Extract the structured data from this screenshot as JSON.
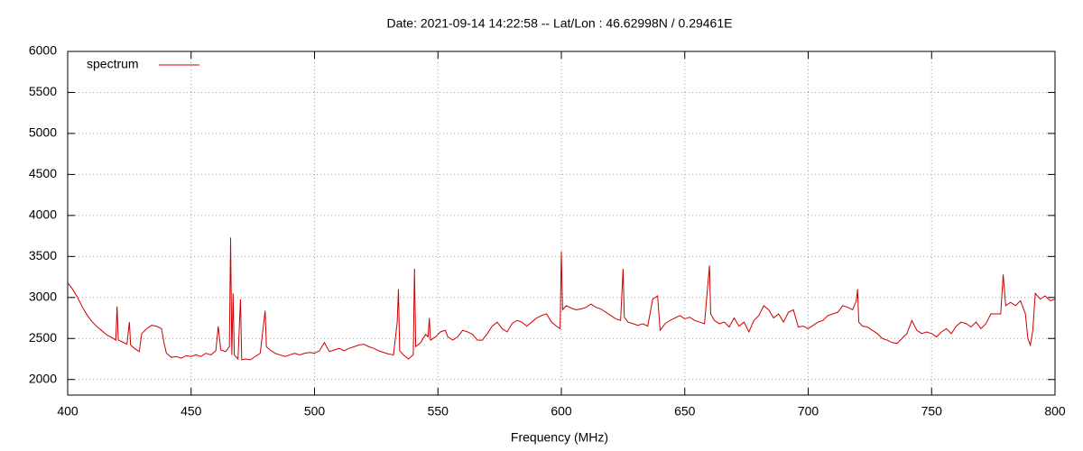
{
  "chart_data": {
    "type": "line",
    "title": "Date: 2021-09-14 14:22:58  --  Lat/Lon : 46.62998N / 0.29461E",
    "x_label": "Frequency (MHz)",
    "x": [
      400,
      402,
      404,
      406,
      408,
      410,
      412,
      414,
      416,
      418,
      419.5,
      420,
      420.5,
      422,
      424,
      425,
      425.5,
      427,
      429,
      430,
      432,
      434,
      436,
      438,
      439,
      440,
      442,
      444,
      446,
      448,
      450,
      452,
      454,
      456,
      458,
      460,
      461,
      462,
      464,
      465.5,
      466,
      466.5,
      467,
      467.5,
      469,
      470,
      470.5,
      472,
      474,
      476,
      478,
      480,
      480.5,
      482,
      484,
      486,
      488,
      490,
      492,
      494,
      496,
      498,
      500,
      502,
      504,
      506,
      508,
      510,
      512,
      514,
      516,
      518,
      520,
      522,
      524,
      526,
      528,
      530,
      532,
      533.5,
      534,
      534.5,
      536,
      538,
      540,
      540.5,
      541,
      543,
      545,
      546,
      546.5,
      547,
      549,
      551,
      553,
      554,
      556,
      558,
      560,
      562,
      564,
      566,
      568,
      570,
      572,
      574,
      576,
      578,
      580,
      582,
      584,
      586,
      588,
      590,
      592,
      594,
      596,
      598,
      599.5,
      600,
      600.5,
      602,
      604,
      606,
      608,
      610,
      612,
      614,
      616,
      618,
      620,
      622,
      624,
      625,
      625.5,
      627,
      629,
      631,
      633,
      635,
      637,
      639,
      640,
      642,
      644,
      646,
      648,
      650,
      652,
      654,
      656,
      658,
      660,
      660.5,
      662,
      664,
      666,
      668,
      670,
      672,
      674,
      676,
      678,
      680,
      682,
      684,
      686,
      688,
      690,
      692,
      694,
      696,
      698,
      700,
      702,
      704,
      706,
      708,
      710,
      712,
      714,
      716,
      718,
      719.5,
      720,
      720.5,
      722,
      724,
      726,
      728,
      730,
      732,
      734,
      736,
      738,
      740,
      742,
      744,
      746,
      748,
      750,
      752,
      754,
      756,
      758,
      760,
      762,
      764,
      766,
      768,
      770,
      772,
      774,
      776,
      778,
      779,
      780,
      782,
      784,
      786,
      788,
      789,
      790,
      791,
      792,
      794,
      796,
      798,
      800
    ],
    "series": [
      {
        "name": "spectrum",
        "color": "#cc0000",
        "values": [
          3180,
          3100,
          3000,
          2880,
          2780,
          2700,
          2640,
          2590,
          2540,
          2510,
          2480,
          2890,
          2480,
          2460,
          2430,
          2700,
          2420,
          2380,
          2340,
          2560,
          2620,
          2660,
          2650,
          2620,
          2450,
          2320,
          2270,
          2280,
          2260,
          2290,
          2280,
          2300,
          2280,
          2320,
          2300,
          2350,
          2650,
          2360,
          2340,
          2400,
          3730,
          2300,
          3050,
          2300,
          2250,
          2980,
          2240,
          2250,
          2240,
          2280,
          2320,
          2840,
          2400,
          2360,
          2320,
          2300,
          2280,
          2300,
          2320,
          2300,
          2320,
          2330,
          2320,
          2350,
          2450,
          2340,
          2360,
          2380,
          2350,
          2380,
          2400,
          2420,
          2430,
          2400,
          2380,
          2350,
          2330,
          2310,
          2300,
          2700,
          3100,
          2350,
          2300,
          2250,
          2300,
          3350,
          2400,
          2450,
          2550,
          2520,
          2750,
          2480,
          2520,
          2580,
          2600,
          2520,
          2480,
          2520,
          2600,
          2580,
          2550,
          2480,
          2480,
          2560,
          2650,
          2700,
          2620,
          2580,
          2680,
          2720,
          2700,
          2650,
          2700,
          2750,
          2780,
          2800,
          2700,
          2650,
          2620,
          3560,
          2850,
          2900,
          2870,
          2850,
          2860,
          2880,
          2920,
          2880,
          2860,
          2820,
          2780,
          2740,
          2720,
          3350,
          2760,
          2700,
          2680,
          2660,
          2680,
          2650,
          2980,
          3020,
          2600,
          2680,
          2720,
          2750,
          2780,
          2740,
          2760,
          2720,
          2700,
          2680,
          3390,
          2800,
          2720,
          2680,
          2700,
          2640,
          2750,
          2650,
          2700,
          2580,
          2720,
          2780,
          2900,
          2850,
          2750,
          2800,
          2700,
          2820,
          2850,
          2640,
          2650,
          2620,
          2660,
          2700,
          2720,
          2780,
          2800,
          2820,
          2900,
          2880,
          2850,
          2960,
          3100,
          2700,
          2650,
          2640,
          2600,
          2560,
          2500,
          2480,
          2450,
          2440,
          2500,
          2560,
          2720,
          2600,
          2560,
          2580,
          2560,
          2520,
          2580,
          2620,
          2560,
          2650,
          2700,
          2680,
          2640,
          2700,
          2620,
          2680,
          2800,
          2800,
          2800,
          3280,
          2900,
          2940,
          2900,
          2960,
          2800,
          2500,
          2420,
          2600,
          3050,
          2980,
          3020,
          2960,
          2980
        ]
      }
    ],
    "xlim": [
      400,
      800
    ],
    "xticks": [
      400,
      450,
      500,
      550,
      600,
      650,
      700,
      750,
      800
    ],
    "ylim": [
      1810,
      6000
    ],
    "yticks": [
      2000,
      2500,
      3000,
      3500,
      4000,
      4500,
      5000,
      5500,
      6000
    ],
    "grid": true,
    "legend": "top-left"
  }
}
